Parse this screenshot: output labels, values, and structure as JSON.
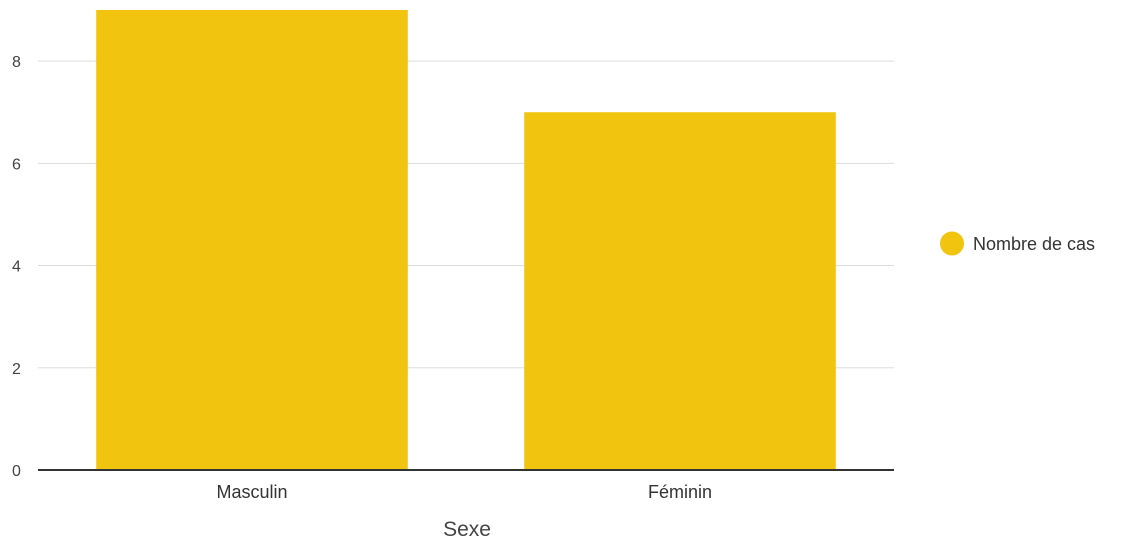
{
  "chart_data": {
    "type": "bar",
    "categories": [
      "Masculin",
      "Féminin"
    ],
    "series": [
      {
        "name": "Nombre de cas",
        "values": [
          9,
          7
        ],
        "color": "#F1C40F"
      }
    ],
    "xlabel": "Sexe",
    "ylabel": "",
    "ylim": [
      0,
      9
    ],
    "yticks": [
      0,
      2,
      4,
      6,
      8
    ],
    "grid": true,
    "legend_position": "right"
  },
  "colors": {
    "bar": "#F1C40F",
    "grid": "#dddddd",
    "axis": "#333333",
    "text": "#444444"
  }
}
